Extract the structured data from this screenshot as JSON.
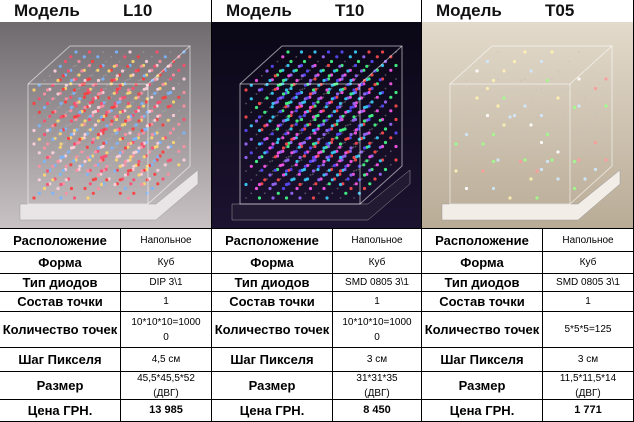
{
  "products": [
    {
      "header_label": "Модель",
      "model": "L10",
      "rows": [
        {
          "label": "Расположение",
          "value": "Напольное"
        },
        {
          "label": "Форма",
          "value": "Куб"
        },
        {
          "label": "Тип диодов",
          "value": "DIP 3\\1"
        },
        {
          "label": "Состав точки",
          "value": "1"
        },
        {
          "label": "Количество точек",
          "value": [
            "10*10*10=1000",
            "0"
          ]
        },
        {
          "label": "Шаг Пикселя",
          "value": "4,5 см"
        },
        {
          "label": "Размер",
          "value": [
            "45,5*45,5*52",
            "(ДВГ)"
          ]
        },
        {
          "label": "Цена ГРН.",
          "value": "13 985"
        }
      ]
    },
    {
      "header_label": "Модель",
      "model": "T10",
      "rows": [
        {
          "label": "Расположение",
          "value": "Напольное"
        },
        {
          "label": "Форма",
          "value": "Куб"
        },
        {
          "label": "Тип диодов",
          "value": "SMD 0805 3\\1"
        },
        {
          "label": "Состав точки",
          "value": "1"
        },
        {
          "label": "Количество точек",
          "value": [
            "10*10*10=1000",
            "0"
          ]
        },
        {
          "label": "Шаг Пикселя",
          "value": "3 см"
        },
        {
          "label": "Размер",
          "value": [
            "31*31*35",
            "(ДВГ)"
          ]
        },
        {
          "label": "Цена ГРН.",
          "value": "8 450"
        }
      ]
    },
    {
      "header_label": "Модель",
      "model": "T05",
      "rows": [
        {
          "label": "Расположение",
          "value": "Напольное"
        },
        {
          "label": "Форма",
          "value": "Куб"
        },
        {
          "label": "Тип диодов",
          "value": "SMD 0805 3\\1"
        },
        {
          "label": "Состав точки",
          "value": "1"
        },
        {
          "label": "Количество точек",
          "value": "5*5*5=125"
        },
        {
          "label": "Шаг Пикселя",
          "value": "3 см"
        },
        {
          "label": "Размер",
          "value": [
            "11,5*11,5*14",
            "(ДВГ)"
          ]
        },
        {
          "label": "Цена ГРН.",
          "value": "1 771"
        }
      ]
    }
  ]
}
